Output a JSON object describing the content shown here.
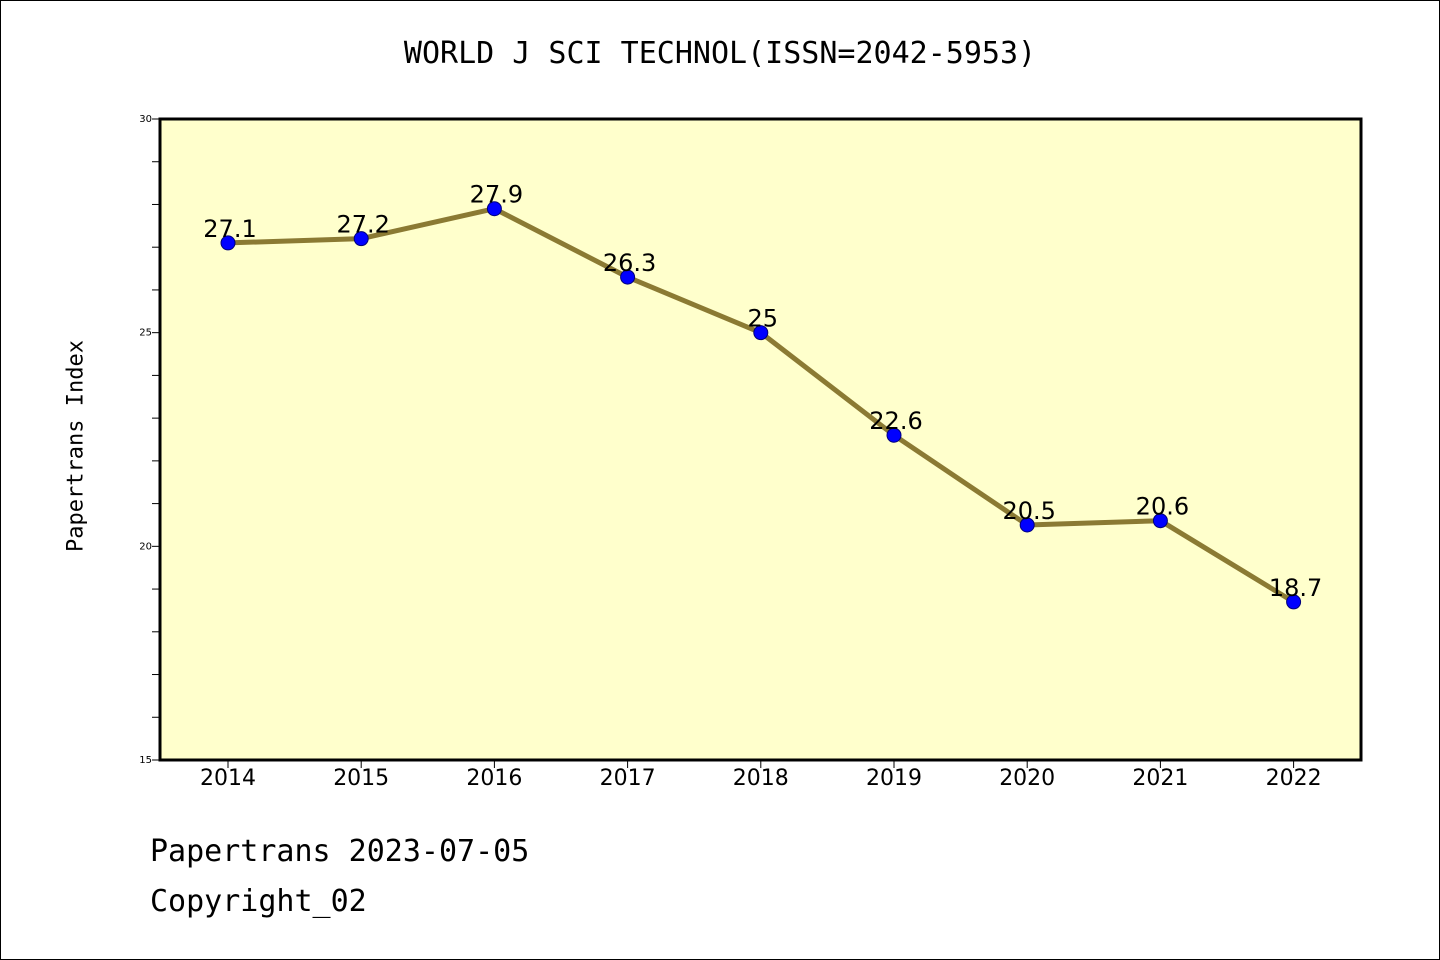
{
  "chart_data": {
    "type": "line",
    "title": "WORLD J SCI TECHNOL(ISSN=2042-5953)",
    "ylabel": "Papertrans Index",
    "xlabel": "",
    "categories": [
      "2014",
      "2015",
      "2016",
      "2017",
      "2018",
      "2019",
      "2020",
      "2021",
      "2022"
    ],
    "values": [
      27.1,
      27.2,
      27.9,
      26.3,
      25,
      22.6,
      20.5,
      20.6,
      18.7
    ],
    "data_labels": [
      "27.1",
      "27.2",
      "27.9",
      "26.3",
      "25",
      "22.6",
      "20.5",
      "20.6",
      "18.7"
    ],
    "ylim": [
      15,
      30
    ],
    "yticks": [
      15,
      20,
      25,
      30
    ],
    "ytick_labels": [
      "15",
      "20",
      "25",
      "30"
    ],
    "grid": false,
    "colors": {
      "line": "#8b7a33",
      "marker": "#0000ff",
      "plot_bg": "#ffffcc"
    }
  },
  "footer": {
    "line1": "Papertrans 2023-07-05",
    "line2": "Copyright_02"
  }
}
